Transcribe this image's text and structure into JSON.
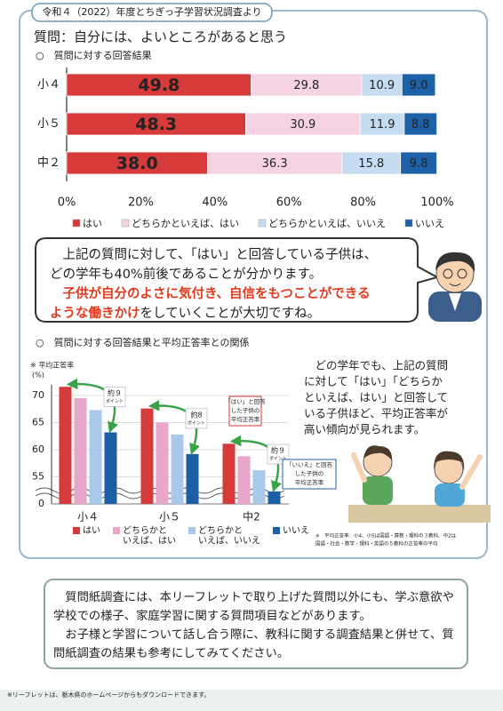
{
  "header": {
    "tab": "令和４（2022）年度とちぎっ子学習状況調査より",
    "question": "質問：自分には、よいところがあると思う"
  },
  "chart_data": [
    {
      "type": "stacked_hbar",
      "subtitle": "○　質問に対する回答結果",
      "categories": [
        "小４",
        "小５",
        "中２"
      ],
      "series": [
        {
          "name": "はい",
          "color": "#d63a3b",
          "values": [
            49.8,
            48.3,
            38.0
          ],
          "value_labels": [
            "49.8",
            "48.3",
            "38.0"
          ]
        },
        {
          "name": "どちらかといえば、はい",
          "color": "#f6d3e3",
          "values": [
            29.8,
            30.9,
            36.3
          ]
        },
        {
          "name": "どちらかといえば、いいえ",
          "color": "#c5dcf1",
          "values": [
            10.9,
            11.9,
            15.8
          ]
        },
        {
          "name": "いいえ",
          "color": "#1d62a8",
          "values": [
            9.0,
            8.8,
            9.8
          ],
          "value_labels": [
            "9.0",
            "8.8",
            "9.8"
          ]
        }
      ],
      "xlim": [
        0,
        100
      ],
      "xticks": [
        {
          "value": 0,
          "label": "0%"
        },
        {
          "value": 20,
          "label": "20%"
        },
        {
          "value": 40,
          "label": "40%"
        },
        {
          "value": 60,
          "label": "60%"
        },
        {
          "value": 80,
          "label": "80%"
        },
        {
          "value": 100,
          "label": "100%"
        }
      ],
      "legend": "bottom"
    },
    {
      "type": "bar",
      "subtitle": "○　質問に対する回答結果と平均正答率との関係",
      "y_label": "※ 平均正答率",
      "y_unit": "(%)",
      "categories": [
        "小４",
        "小５",
        "中2"
      ],
      "series": [
        {
          "name": "はい",
          "color": "#d63a3b",
          "values": [
            71.6,
            67.6,
            61.1
          ]
        },
        {
          "name": "どちらかと\nいえば、はい",
          "color": "#e9a6cb",
          "values": [
            69.5,
            65.0,
            58.8
          ]
        },
        {
          "name": "どちらかと\nいえば、いいえ",
          "color": "#a9c9ea",
          "values": [
            67.3,
            62.8,
            56.2
          ]
        },
        {
          "name": "いいえ",
          "color": "#1d5fa6",
          "values": [
            63.2,
            59.2,
            52.3
          ]
        }
      ],
      "ylim": [
        50,
        72
      ],
      "yticks": [
        {
          "value": 50,
          "label": "0"
        },
        55,
        60,
        65,
        70
      ],
      "annotations": [
        {
          "text": "約９",
          "sub": "ポイント"
        },
        {
          "text": "約8",
          "sub": "ポイント"
        },
        {
          "text": "約９",
          "sub": "ポイント"
        }
      ],
      "callouts": [
        [
          "「はい」と回答",
          "した子供の",
          "平均正答率"
        ],
        [
          "「いいえ」と回答",
          "した子供の",
          "平均正答率"
        ]
      ],
      "legend": "bottom"
    }
  ],
  "bubble": {
    "lines": [
      [
        {
          "text": "　上記の質問に対して、「はい」と回答している子供は、",
          "red": false
        }
      ],
      [
        {
          "text": "どの学年も40%前後であることが分かります。",
          "red": false
        }
      ],
      [
        {
          "text": "　子供が自分のよさに気付き、自信をもつことができる",
          "red": true
        }
      ],
      [
        {
          "text": "ような働きかけ",
          "red": true
        },
        {
          "text": "をしていくことが大切ですね。",
          "red": false
        }
      ]
    ]
  },
  "side_text": [
    "　どの学年でも、上記の質問",
    "に対して「はい」「どちらか",
    "といえば、はい」と回答して",
    "いる子供ほど、平均正答率が",
    "高い傾向が見られます。"
  ],
  "note": [
    "※　平均正答率：小4、小5は国語・算数・理科の３教科、中2は",
    "国語・社会・数学・理科・英語の５教科の正答率の平均"
  ],
  "info_box": [
    "　質問紙調査には、本リーフレットで取り上げた質問以外にも、学ぶ意欲や",
    "学校での様子、家庭学習に関する質問項目などがあります。",
    "　お子様と学習について話し合う際に、教科に関する調査結果と併せて、質",
    "問紙調査の結果も参考にしてみてください。"
  ],
  "footer": "※リーフレットは、栃木県のホームページからもダウンロードできます。"
}
